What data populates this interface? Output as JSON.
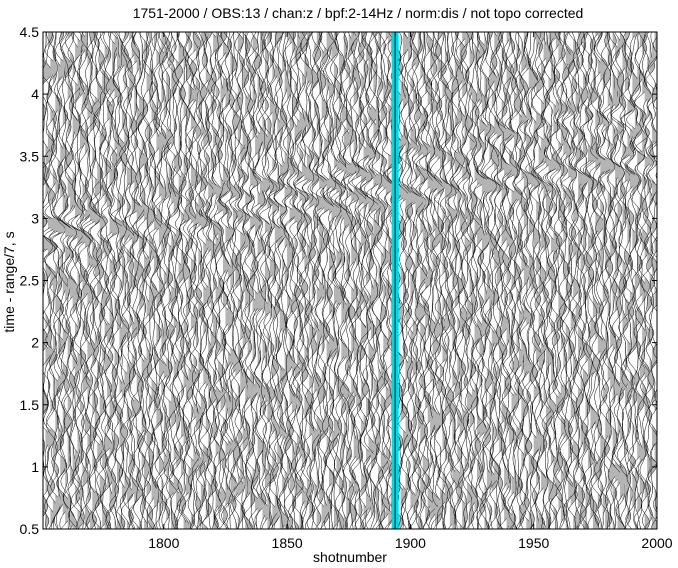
{
  "chart_data": {
    "type": "seismic_record_section",
    "title": "1751-2000 / OBS:13 / chan:z / bpf:2-14Hz / norm:dis / not topo corrected",
    "xlabel": "shotnumber",
    "ylabel": "time - range/7, s",
    "xlim": [
      1751,
      2000
    ],
    "ylim": [
      0.5,
      4.5
    ],
    "y_direction": "increasing-up",
    "x_ticks": [
      1800,
      1850,
      1900,
      1950,
      2000
    ],
    "x_tick_labels": [
      "1800",
      "1850",
      "1900",
      "1950",
      "2000"
    ],
    "y_ticks": [
      0.5,
      1,
      1.5,
      2,
      2.5,
      3,
      3.5,
      4,
      4.5
    ],
    "y_tick_labels": [
      "0.5",
      "1",
      "1.5",
      "2",
      "2.5",
      "3",
      "3.5",
      "4",
      "4.5"
    ],
    "shot_first": 1751,
    "shot_last": 2000,
    "wiggle_fill": "positive lobes shaded",
    "highlighted_trace": {
      "shot": 1893,
      "color": "#00d8e8"
    },
    "colors": {
      "trace_line": "#000000",
      "trace_fill": "#b4b4b4",
      "highlight": "#00d8e8",
      "axes": "#000000",
      "background": "#ffffff"
    },
    "grid": false,
    "legend": "none"
  }
}
